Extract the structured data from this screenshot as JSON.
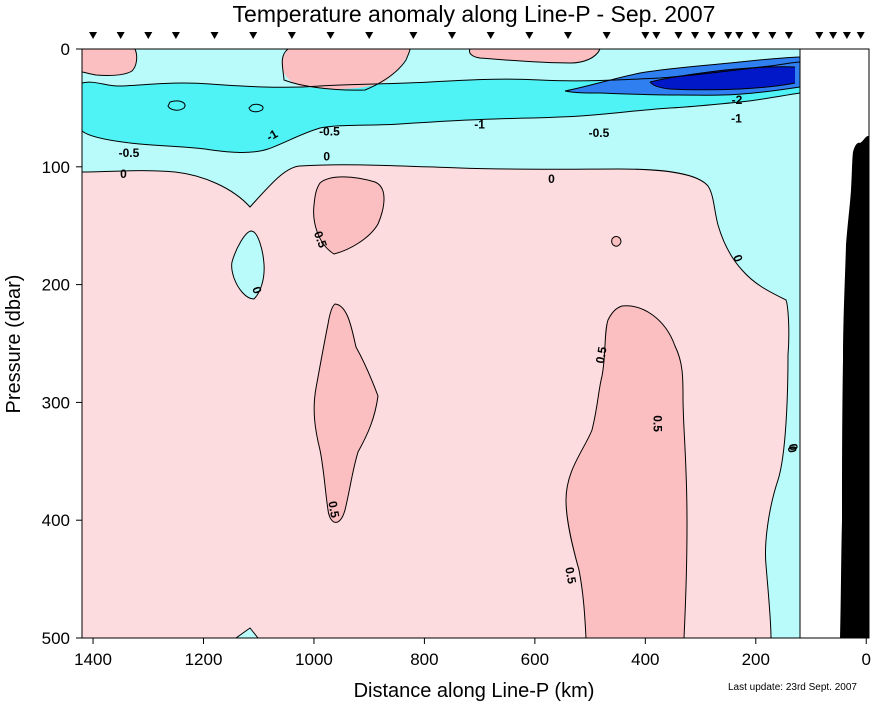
{
  "chart_data": {
    "type": "heatmap",
    "subtype": "contour section",
    "title": "Temperature anomaly along Line-P - Sep. 2007",
    "xlabel": "Distance along Line-P (km)",
    "ylabel": "Pressure (dbar)",
    "xlim": [
      1420,
      -5
    ],
    "ylim": [
      500,
      0
    ],
    "x_direction": "reversed",
    "y_direction": "reversed",
    "x_ticks": [
      1400,
      1200,
      1000,
      800,
      600,
      400,
      200,
      0
    ],
    "y_ticks": [
      0,
      100,
      200,
      300,
      400,
      500
    ],
    "contour_levels": [
      -2,
      -1,
      -0.5,
      0,
      0.5
    ],
    "contour_labels": [
      "0",
      "0",
      "-0.5",
      "-1",
      "0",
      "0.5",
      "0",
      "0.5",
      "0.5",
      "0.5",
      "0.5",
      "0",
      "-0.5",
      "-1",
      "-0.5",
      "-1",
      "-2",
      "0",
      "0"
    ],
    "station_positions_km": [
      1400,
      1350,
      1300,
      1250,
      1180,
      1110,
      1040,
      970,
      900,
      820,
      750,
      680,
      610,
      540,
      470,
      400,
      380,
      340,
      310,
      280,
      250,
      230,
      200,
      170,
      140,
      85,
      60,
      35,
      10
    ],
    "colors": {
      "negative_strong": "#0018c8",
      "negative_mid": "#2f7ff0",
      "negative_weak": "#4ff2f5",
      "negative_slight": "#b9fbfb",
      "positive_slight": "#fddcdf",
      "positive_mid": "#fbbfc1",
      "bathymetry": "#000000"
    },
    "footnote": "Last update: 23rd Sept. 2007"
  }
}
